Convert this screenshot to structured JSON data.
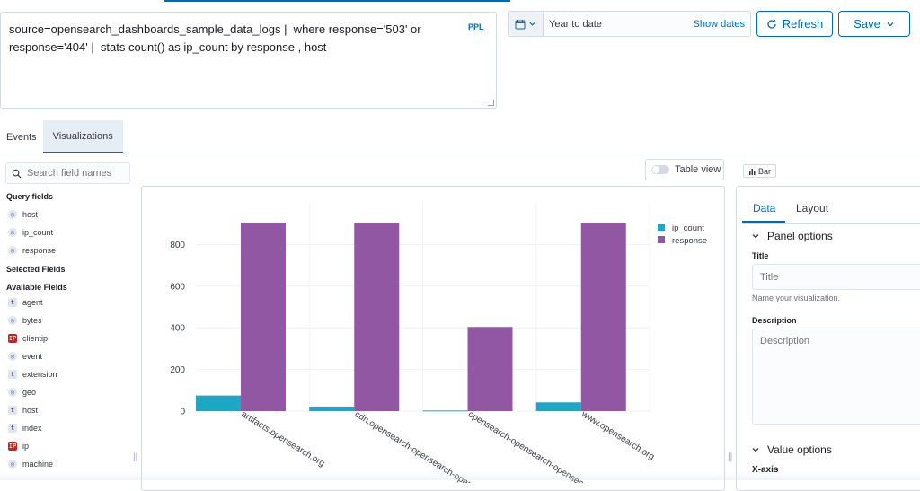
{
  "query": {
    "text": "source=opensearch_dashboards_sample_data_logs |  where response='503' or response='404' |  stats count() as ip_count by response , host",
    "language_badge": "PPL"
  },
  "date_picker": {
    "value": "Year to date",
    "show_dates_label": "Show dates"
  },
  "toolbar": {
    "refresh_label": "Refresh",
    "save_label": "Save"
  },
  "tabs": [
    {
      "label": "Events",
      "active": false
    },
    {
      "label": "Visualizations",
      "active": true
    }
  ],
  "sidebar": {
    "search_placeholder": "Search field names",
    "query_fields_heading": "Query fields",
    "query_fields": [
      {
        "name": "host",
        "type": "number"
      },
      {
        "name": "ip_count",
        "type": "number"
      },
      {
        "name": "response",
        "type": "number"
      }
    ],
    "selected_fields_heading": "Selected Fields",
    "available_fields_heading": "Available Fields",
    "available_fields": [
      {
        "name": "agent",
        "type": "string"
      },
      {
        "name": "bytes",
        "type": "number"
      },
      {
        "name": "clientip",
        "type": "ip"
      },
      {
        "name": "event",
        "type": "number"
      },
      {
        "name": "extension",
        "type": "string"
      },
      {
        "name": "geo",
        "type": "number"
      },
      {
        "name": "host",
        "type": "string"
      },
      {
        "name": "index",
        "type": "string"
      },
      {
        "name": "ip",
        "type": "ip"
      },
      {
        "name": "machine",
        "type": "number"
      }
    ]
  },
  "chart_toolbar": {
    "table_view_label": "Table view",
    "chart_type_label": "Bar"
  },
  "chart_data": {
    "type": "bar",
    "categories": [
      "artifacts.opensearch.org",
      "cdn.opensearch-opensearch-opensearch.org",
      "opensearch-opensearch-opensearch.org",
      "www.opensearch.org"
    ],
    "category_labels": [
      "artifacts.opensearch.org",
      "cdn.opensearch-opensearch-open",
      "opensearch-opensearch-opensea",
      "www.opensearch.org"
    ],
    "series": [
      {
        "name": "ip_count",
        "color": "#1ea7c5",
        "values": [
          75,
          22,
          3,
          42
        ]
      },
      {
        "name": "response",
        "color": "#9157a3",
        "values": [
          905,
          905,
          404,
          905
        ]
      }
    ],
    "yticks": [
      0,
      200,
      400,
      600,
      800
    ],
    "ylim": [
      0,
      1000
    ],
    "legend_position": "top-right",
    "grid": true
  },
  "config": {
    "tabs": [
      {
        "label": "Data",
        "active": true
      },
      {
        "label": "Layout",
        "active": false
      }
    ],
    "panel_options_heading": "Panel options",
    "title_label": "Title",
    "title_placeholder": "Title",
    "title_help": "Name your visualization.",
    "description_label": "Description",
    "description_placeholder": "Description",
    "value_options_heading": "Value options",
    "xaxis_label": "X-axis"
  }
}
